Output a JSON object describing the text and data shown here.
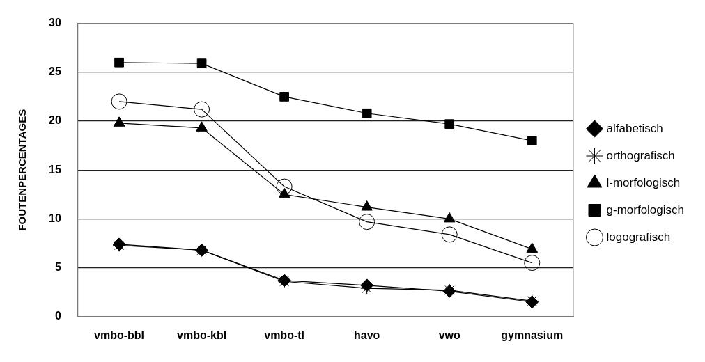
{
  "chart_data": {
    "type": "line",
    "ylabel": "FOUTENPERCENTAGES",
    "categories": [
      "vmbo-bbl",
      "vmbo-kbl",
      "vmbo-tl",
      "havo",
      "vwo",
      "gymnasium"
    ],
    "series": [
      {
        "name": "alfabetisch",
        "color": "#000000",
        "marker": "diamond",
        "values": [
          7.4,
          6.8,
          3.7,
          3.2,
          2.6,
          1.5
        ]
      },
      {
        "name": "orthografisch",
        "color": "#000000",
        "marker": "cross",
        "values": [
          7.3,
          6.8,
          3.6,
          2.9,
          2.7,
          1.6
        ]
      },
      {
        "name": "l-morfologisch",
        "color": "#000000",
        "marker": "triangle",
        "values": [
          19.8,
          19.3,
          12.5,
          11.2,
          10,
          6.9
        ]
      },
      {
        "name": "g-morfologisch",
        "color": "#000000",
        "marker": "square",
        "values": [
          26,
          25.9,
          22.5,
          20.8,
          19.7,
          18
        ]
      },
      {
        "name": "logografisch",
        "color": "#000000",
        "marker": "circle",
        "values": [
          22,
          21.2,
          13.3,
          9.7,
          8.4,
          5.5
        ]
      }
    ],
    "ylim": [
      0,
      30
    ],
    "yticks": [
      0,
      5,
      10,
      15,
      20,
      25,
      30
    ],
    "grid": "y",
    "legend": "right",
    "line_style": "solid"
  }
}
